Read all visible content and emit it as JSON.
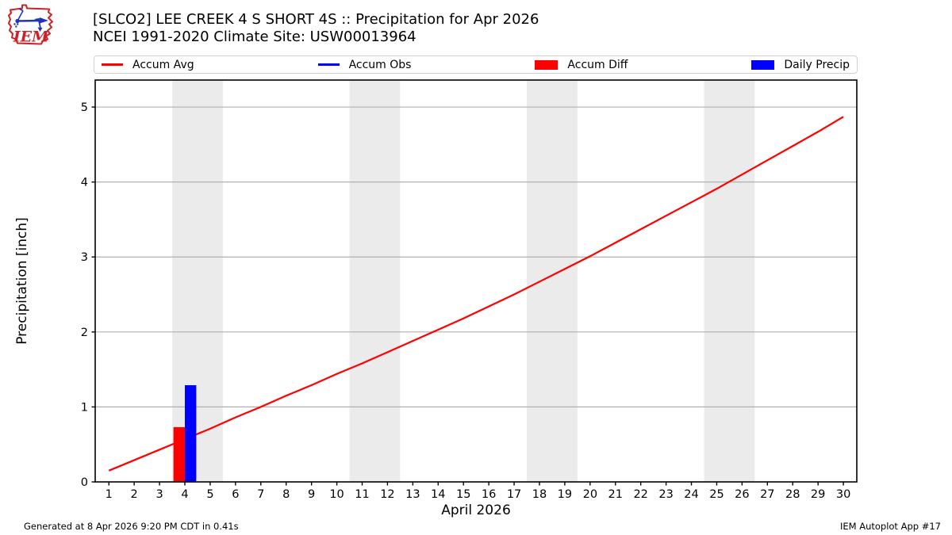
{
  "header": {
    "title_line1": "[SLCO2] LEE CREEK 4 S SHORT 4S :: Precipitation for Apr 2026",
    "title_line2": "NCEI 1991-2020 Climate Site: USW00013964",
    "logo_text": "IEM"
  },
  "legend": {
    "items": [
      {
        "label": "Accum Avg",
        "swatch": "line",
        "color": "#ff0000"
      },
      {
        "label": "Accum Obs",
        "swatch": "line",
        "color": "#0000ff"
      },
      {
        "label": "Accum Diff",
        "swatch": "box",
        "color": "#ff0000"
      },
      {
        "label": "Daily Precip",
        "swatch": "box",
        "color": "#0000ff"
      }
    ]
  },
  "footer": {
    "generated": "Generated at 8 Apr 2026 9:20 PM CDT in 0.41s",
    "app": "IEM Autoplot App #17"
  },
  "chart_data": {
    "type": "line",
    "title": "[SLCO2] LEE CREEK 4 S SHORT 4S :: Precipitation for Apr 2026",
    "subtitle": "NCEI 1991-2020 Climate Site: USW00013964",
    "xlabel": "April 2026",
    "ylabel": "Precipitation [inch]",
    "xlim": [
      0.46,
      30.53
    ],
    "ylim": [
      0,
      5.36
    ],
    "x_ticks": [
      1,
      2,
      3,
      4,
      5,
      6,
      7,
      8,
      9,
      10,
      11,
      12,
      13,
      14,
      15,
      16,
      17,
      18,
      19,
      20,
      21,
      22,
      23,
      24,
      25,
      26,
      27,
      28,
      29,
      30
    ],
    "y_ticks": [
      0,
      1,
      2,
      3,
      4,
      5
    ],
    "grid": "horizontal",
    "legend_position": "top",
    "weekend_bands": [
      [
        3.5,
        5.5
      ],
      [
        10.5,
        12.5
      ],
      [
        17.5,
        19.5
      ],
      [
        24.5,
        26.5
      ]
    ],
    "series": [
      {
        "name": "Accum Avg",
        "type": "line",
        "color": "#ff0000",
        "x": [
          1,
          2,
          3,
          4,
          5,
          6,
          7,
          8,
          9,
          10,
          11,
          12,
          13,
          14,
          15,
          16,
          17,
          18,
          19,
          20,
          21,
          22,
          23,
          24,
          25,
          26,
          27,
          28,
          29,
          30
        ],
        "y": [
          0.15,
          0.29,
          0.43,
          0.57,
          0.71,
          0.86,
          1.0,
          1.15,
          1.29,
          1.44,
          1.58,
          1.73,
          1.88,
          2.03,
          2.18,
          2.34,
          2.5,
          2.67,
          2.84,
          3.01,
          3.19,
          3.37,
          3.55,
          3.73,
          3.91,
          4.1,
          4.29,
          4.48,
          4.67,
          4.87
        ]
      },
      {
        "name": "Accum Obs",
        "type": "line",
        "color": "#0000ff",
        "x": [],
        "y": []
      },
      {
        "name": "Accum Diff",
        "type": "bar",
        "color": "#ff0000",
        "bar_offset": -0.225,
        "bar_width": 0.45,
        "x": [
          4
        ],
        "y": [
          0.73
        ]
      },
      {
        "name": "Daily Precip",
        "type": "bar",
        "color": "#0000ff",
        "bar_offset": 0.225,
        "bar_width": 0.45,
        "x": [
          4
        ],
        "y": [
          1.29
        ]
      }
    ],
    "colors": {
      "band": "#ebebeb",
      "grid": "#b0b0b0",
      "spine": "#000000",
      "accent_red": "#ff0000",
      "accent_blue": "#0000ff"
    }
  }
}
